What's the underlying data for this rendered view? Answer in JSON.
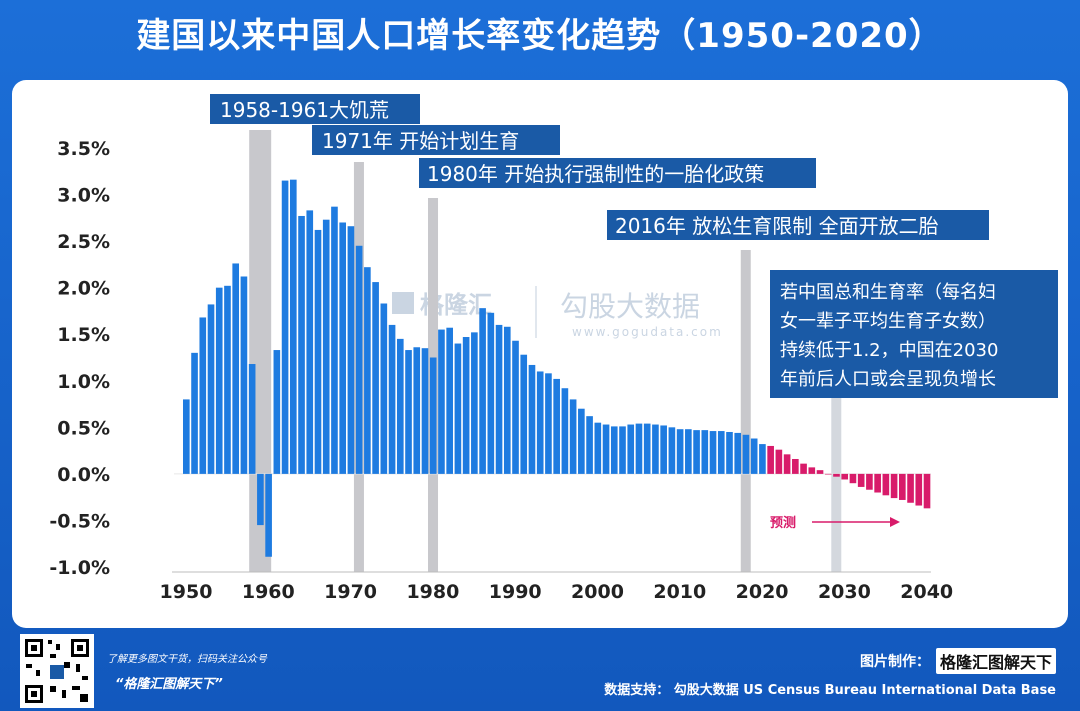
{
  "title": "建国以来中国人口增长率变化趋势（1950-2020）",
  "annotations": {
    "famine": "1958-1961大饥荒",
    "family_planning": "1971年 开始计划生育",
    "one_child": "1980年 开始执行强制性的一胎化政策",
    "two_child": "2016年 放松生育限制 全面开放二胎",
    "warning": [
      "若中国总和生育率（每名妇",
      "女一辈子平均生育子女数）",
      "持续低于1.2，中国在2030",
      "年前后人口或会呈现负增长"
    ],
    "forecast": "预测"
  },
  "watermark": {
    "brand": "格隆汇",
    "name": "勾股大数据",
    "url": "www.gogudata.com"
  },
  "footer": {
    "scan_text": "了解更多图文干货，扫码关注公众号",
    "brand_quote": "“格隆汇图解天下”",
    "made_by_label": "图片制作：",
    "made_by_logo": "格隆汇图解天下",
    "data_support": "数据支持：  勾股大数据    US Census Bureau International Data Base"
  },
  "colors": {
    "actual": "#1e7be0",
    "forecast": "#d81b6a",
    "band": "#c8c8cc",
    "label_bg": "#1a5aa6",
    "header_bg": "#1560c8"
  },
  "chart_data": {
    "type": "bar",
    "ylim": [
      -1.0,
      3.5
    ],
    "yticks": [
      "3.5%",
      "3.0%",
      "2.5%",
      "2.0%",
      "1.5%",
      "1.0%",
      "0.5%",
      "0.0%",
      "-0.5%",
      "-1.0%"
    ],
    "xticks": [
      "1950",
      "1960",
      "1970",
      "1980",
      "1990",
      "2000",
      "2010",
      "2020",
      "2030",
      "2040"
    ],
    "highlight_years": [
      1959,
      1971,
      1980,
      2018,
      2029
    ],
    "series": [
      {
        "x": [
          1950,
          1951,
          1952,
          1953,
          1954,
          1955,
          1956,
          1957,
          1958,
          1959,
          1960,
          1961,
          1962,
          1963,
          1964,
          1965,
          1966,
          1967,
          1968,
          1969,
          1970,
          1971,
          1972,
          1973,
          1974,
          1975,
          1976,
          1977,
          1978,
          1979,
          1980,
          1981,
          1982,
          1983,
          1984,
          1985,
          1986,
          1987,
          1988,
          1989,
          1990,
          1991,
          1992,
          1993,
          1994,
          1995,
          1996,
          1997,
          1998,
          1999,
          2000,
          2001,
          2002,
          2003,
          2004,
          2005,
          2006,
          2007,
          2008,
          2009,
          2010,
          2011,
          2012,
          2013,
          2014,
          2015,
          2016,
          2017,
          2018,
          2019,
          2020
        ],
        "values": [
          0.8,
          1.3,
          1.68,
          1.82,
          2.0,
          2.02,
          2.26,
          2.12,
          1.18,
          -0.55,
          -0.89,
          1.33,
          3.15,
          3.16,
          2.77,
          2.83,
          2.62,
          2.73,
          2.87,
          2.7,
          2.66,
          2.45,
          2.22,
          2.06,
          1.83,
          1.6,
          1.45,
          1.33,
          1.36,
          1.35,
          1.25,
          1.55,
          1.57,
          1.4,
          1.47,
          1.52,
          1.78,
          1.73,
          1.6,
          1.58,
          1.43,
          1.28,
          1.17,
          1.1,
          1.08,
          1.02,
          0.92,
          0.8,
          0.7,
          0.62,
          0.55,
          0.53,
          0.51,
          0.51,
          0.53,
          0.54,
          0.54,
          0.53,
          0.52,
          0.5,
          0.48,
          0.48,
          0.47,
          0.47,
          0.46,
          0.46,
          0.45,
          0.44,
          0.42,
          0.38,
          0.32
        ]
      },
      {
        "name": "预测",
        "x": [
          2021,
          2022,
          2023,
          2024,
          2025,
          2026,
          2027,
          2028,
          2029,
          2030,
          2031,
          2032,
          2033,
          2034,
          2035,
          2036,
          2037,
          2038,
          2039,
          2040
        ],
        "values": [
          0.3,
          0.26,
          0.21,
          0.16,
          0.11,
          0.07,
          0.04,
          0.0,
          -0.03,
          -0.06,
          -0.1,
          -0.14,
          -0.17,
          -0.2,
          -0.23,
          -0.26,
          -0.28,
          -0.31,
          -0.34,
          -0.37
        ]
      }
    ]
  }
}
